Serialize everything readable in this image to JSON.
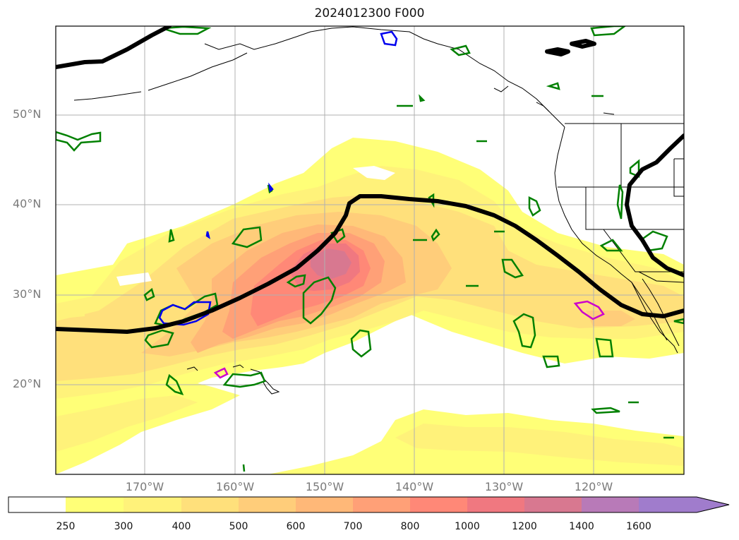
{
  "title": "2024012300 F000",
  "lat_labels": [
    "50°N",
    "40°N",
    "30°N",
    "20°N"
  ],
  "lon_labels": [
    "170°W",
    "160°W",
    "150°W",
    "140°W",
    "130°W",
    "120°W"
  ],
  "colorbar": {
    "levels": [
      "250",
      "300",
      "400",
      "500",
      "600",
      "700",
      "800",
      "1000",
      "1200",
      "1400",
      "1600"
    ],
    "colors": [
      "#ffffff",
      "#ffff77",
      "#fff27a",
      "#ffe07b",
      "#ffcd7a",
      "#ffb878",
      "#ffa077",
      "#ff8877",
      "#f07880",
      "#d87890",
      "#b87ab8",
      "#a07ccc"
    ],
    "extend": "max"
  },
  "map": {
    "background": "#ffffff",
    "contour_black": "#000000",
    "contour_green": "#008000",
    "contour_blue": "#0000ee",
    "contour_magenta": "#cc00cc",
    "grid": "#b0b0b0"
  }
}
